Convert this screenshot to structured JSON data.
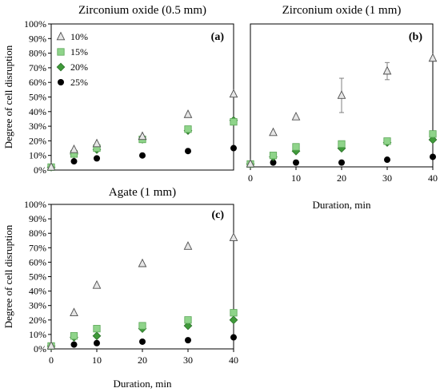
{
  "chart_data": [
    {
      "id": "a",
      "type": "scatter",
      "title": "Zirconium oxide (0.5 mm)",
      "panel_label": "(a)",
      "xlabel": "",
      "ylabel": "Degree of cell disruption",
      "xlim": [
        0,
        40
      ],
      "ylim": [
        0,
        100
      ],
      "x_tick_labels": [],
      "y_tick_labels": [
        "0%",
        "10%",
        "20%",
        "30%",
        "40%",
        "50%",
        "60%",
        "70%",
        "80%",
        "90%",
        "100%"
      ],
      "legend": {
        "show": true,
        "position": "top-left"
      },
      "x": [
        0,
        5,
        10,
        20,
        30,
        40
      ],
      "series": [
        {
          "name": "10%",
          "marker": "triangle",
          "values": [
            2,
            14,
            18,
            23,
            38,
            52
          ]
        },
        {
          "name": "15%",
          "marker": "square",
          "values": [
            2,
            11,
            15,
            21,
            28,
            33
          ]
        },
        {
          "name": "20%",
          "marker": "diamond",
          "values": [
            2,
            11,
            14,
            21,
            27,
            34
          ]
        },
        {
          "name": "25%",
          "marker": "circle",
          "values": [
            2,
            6,
            8,
            10,
            13,
            15
          ]
        }
      ]
    },
    {
      "id": "b",
      "type": "scatter",
      "title": "Zirconium oxide (1 mm)",
      "panel_label": "(b)",
      "xlabel": "Duration, min",
      "ylabel": "",
      "xlim": [
        0,
        40
      ],
      "ylim": [
        0,
        100
      ],
      "x_tick_labels": [
        "0",
        "10",
        "20",
        "30",
        "40"
      ],
      "y_tick_labels": [],
      "legend": {
        "show": false
      },
      "x": [
        0,
        5,
        10,
        20,
        30,
        40
      ],
      "series": [
        {
          "name": "10%",
          "marker": "triangle",
          "values": [
            2,
            24,
            35,
            50,
            67,
            76
          ],
          "error": [
            0,
            0,
            0,
            12,
            6,
            0
          ]
        },
        {
          "name": "15%",
          "marker": "square",
          "values": [
            2,
            8,
            14,
            16,
            18,
            23
          ]
        },
        {
          "name": "20%",
          "marker": "diamond",
          "values": [
            2,
            7,
            11,
            13,
            17,
            19
          ]
        },
        {
          "name": "25%",
          "marker": "circle",
          "values": [
            2,
            3,
            3,
            3,
            5,
            7
          ]
        }
      ]
    },
    {
      "id": "c",
      "type": "scatter",
      "title": "Agate (1 mm)",
      "panel_label": "(c)",
      "xlabel": "Duration, min",
      "ylabel": "Degree of cell disruption",
      "xlim": [
        0,
        40
      ],
      "ylim": [
        0,
        100
      ],
      "x_tick_labels": [
        "0",
        "10",
        "20",
        "30",
        "40"
      ],
      "y_tick_labels": [
        "0%",
        "10%",
        "20%",
        "30%",
        "40%",
        "50%",
        "60%",
        "70%",
        "80%",
        "90%",
        "100%"
      ],
      "legend": {
        "show": false
      },
      "x": [
        0,
        5,
        10,
        20,
        30,
        40
      ],
      "series": [
        {
          "name": "10%",
          "marker": "triangle",
          "values": [
            2,
            25,
            44,
            59,
            71,
            77
          ]
        },
        {
          "name": "15%",
          "marker": "square",
          "values": [
            2,
            9,
            14,
            16,
            20,
            25
          ]
        },
        {
          "name": "20%",
          "marker": "diamond",
          "values": [
            2,
            8,
            9,
            14,
            16,
            20
          ]
        },
        {
          "name": "25%",
          "marker": "circle",
          "values": [
            2,
            3,
            4,
            5,
            6,
            8
          ]
        }
      ]
    }
  ],
  "colors": {
    "triangle_fill": "#e6e6e6",
    "square_fill": "#8fd48a",
    "diamond_fill": "#3f9a3a",
    "circle_fill": "#000000",
    "marker_stroke": "#4d4d4d",
    "frame": "#000000",
    "errorbar": "#808080"
  }
}
